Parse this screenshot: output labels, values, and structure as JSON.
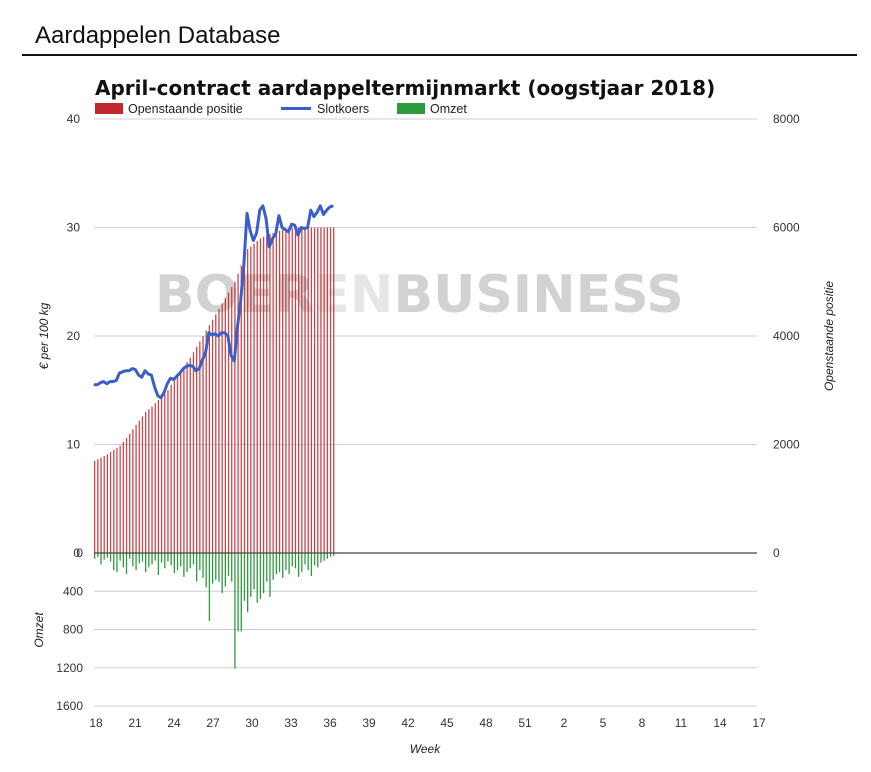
{
  "page": {
    "title": "Aardappelen Database"
  },
  "watermark": {
    "part1": "BOER",
    "part2": "EN",
    "part3": "BUSINESS"
  },
  "chart_data": {
    "type": "bar",
    "title": "April-contract aardappeltermijnmarkt (oogstjaar 2018)",
    "legend": [
      {
        "label": "Openstaande positie",
        "color": "#c0282d",
        "kind": "bar"
      },
      {
        "label": "Slotkoers",
        "color": "#3a5fc8",
        "kind": "line"
      },
      {
        "label": "Omzet",
        "color": "#2e9b3e",
        "kind": "bar"
      }
    ],
    "legend_position": "top-left",
    "xlabel": "Week",
    "x_ticks": [
      "18",
      "21",
      "24",
      "27",
      "30",
      "33",
      "36",
      "39",
      "42",
      "45",
      "48",
      "51",
      "2",
      "5",
      "8",
      "11",
      "14",
      "17"
    ],
    "price_axis": {
      "label": "€ per 100 kg",
      "min": 0,
      "max": 40,
      "ticks": [
        "0",
        "10",
        "20",
        "30",
        "40"
      ]
    },
    "oi_axis": {
      "label": "Openstaande positie",
      "min": 0,
      "max": 8000,
      "ticks": [
        "0",
        "2000",
        "4000",
        "6000",
        "8000"
      ]
    },
    "volume_axis": {
      "label": "Omzet",
      "min": 0,
      "max": 1600,
      "ticks": [
        "0",
        "400",
        "800",
        "1200",
        "1600"
      ],
      "inverted": true
    },
    "grid": true,
    "x_range_weeks": [
      18,
      70
    ],
    "series": [
      {
        "name": "Openstaande positie",
        "type": "bar",
        "axis": "oi",
        "x": [
          18,
          18.25,
          18.5,
          18.75,
          19,
          19.25,
          19.5,
          19.75,
          20,
          20.25,
          20.5,
          20.75,
          21,
          21.25,
          21.5,
          21.75,
          22,
          22.25,
          22.5,
          22.75,
          23,
          23.25,
          23.5,
          23.75,
          24,
          24.25,
          24.5,
          24.75,
          25,
          25.25,
          25.5,
          25.75,
          26,
          26.25,
          26.5,
          26.75,
          27,
          27.25,
          27.5,
          27.75,
          28,
          28.25,
          28.5,
          28.75,
          29,
          29.25,
          29.5,
          29.75,
          30,
          30.25,
          30.5,
          30.75,
          31,
          31.25,
          31.5,
          31.75,
          32,
          32.25,
          32.5,
          32.75,
          33,
          33.25,
          33.5,
          33.75,
          34,
          34.25,
          34.5,
          34.75,
          35,
          35.25,
          35.5,
          35.75,
          36,
          36.25,
          36.5,
          36.75
        ],
        "values": [
          1700,
          1730,
          1760,
          1790,
          1820,
          1860,
          1900,
          1940,
          1980,
          2050,
          2120,
          2200,
          2280,
          2360,
          2440,
          2520,
          2600,
          2650,
          2700,
          2760,
          2820,
          2880,
          2940,
          3000,
          3100,
          3200,
          3280,
          3360,
          3440,
          3520,
          3600,
          3700,
          3800,
          3900,
          4000,
          4100,
          4200,
          4300,
          4400,
          4500,
          4600,
          4700,
          4800,
          4900,
          5000,
          5150,
          5300,
          5450,
          5600,
          5650,
          5700,
          5750,
          5800,
          5830,
          5860,
          5880,
          5900,
          5920,
          5940,
          5960,
          5970,
          5980,
          5990,
          6000,
          6000,
          6000,
          6000,
          6000,
          6000,
          6000,
          6000,
          6000,
          6000,
          6000,
          6000,
          6000
        ]
      },
      {
        "name": "Slotkoers",
        "type": "line",
        "axis": "price",
        "x": [
          18,
          18.25,
          18.5,
          18.75,
          19,
          19.25,
          19.5,
          19.75,
          20,
          20.25,
          20.5,
          20.75,
          21,
          21.25,
          21.5,
          21.75,
          22,
          22.25,
          22.5,
          22.75,
          23,
          23.25,
          23.5,
          23.75,
          24,
          24.25,
          24.5,
          24.75,
          25,
          25.25,
          25.5,
          25.75,
          26,
          26.25,
          26.5,
          26.75,
          27,
          27.25,
          27.5,
          27.75,
          28,
          28.25,
          28.5,
          28.75,
          29,
          29.25,
          29.5,
          29.75,
          30,
          30.25,
          30.5,
          30.75,
          31,
          31.25,
          31.5,
          31.75,
          32,
          32.25,
          32.5,
          32.75,
          33,
          33.25,
          33.5,
          33.75,
          34,
          34.25,
          34.5,
          34.75,
          35,
          35.25,
          35.5,
          35.75,
          36,
          36.25,
          36.5,
          36.75
        ],
        "values": [
          15.5,
          15.5,
          15.7,
          15.8,
          15.6,
          15.8,
          15.8,
          15.9,
          16.6,
          16.7,
          16.8,
          16.8,
          17.0,
          16.9,
          16.4,
          16.2,
          16.8,
          16.5,
          16.4,
          15.3,
          14.5,
          14.3,
          14.8,
          15.6,
          16.1,
          16.0,
          16.3,
          16.6,
          17.0,
          17.2,
          17.3,
          17.2,
          16.8,
          17.0,
          17.8,
          18.5,
          20.3,
          20.1,
          20.2,
          20.0,
          20.3,
          20.3,
          20.0,
          18.2,
          17.7,
          20.8,
          23.2,
          26.5,
          31.3,
          29.7,
          28.8,
          29.5,
          31.6,
          32.0,
          30.8,
          28.2,
          29.0,
          29.4,
          31.1,
          30.0,
          29.8,
          29.6,
          30.3,
          30.2,
          29.3,
          30.0,
          29.9,
          30.0,
          31.6,
          31.0,
          31.4,
          32.0,
          31.2,
          31.6,
          31.9,
          32.0
        ]
      },
      {
        "name": "Omzet",
        "type": "bar",
        "axis": "volume",
        "x": [
          18,
          18.25,
          18.5,
          18.75,
          19,
          19.25,
          19.5,
          19.75,
          20,
          20.25,
          20.5,
          20.75,
          21,
          21.25,
          21.5,
          21.75,
          22,
          22.25,
          22.5,
          22.75,
          23,
          23.25,
          23.5,
          23.75,
          24,
          24.25,
          24.5,
          24.75,
          25,
          25.25,
          25.5,
          25.75,
          26,
          26.25,
          26.5,
          26.75,
          27,
          27.25,
          27.5,
          27.75,
          28,
          28.25,
          28.5,
          28.75,
          29,
          29.25,
          29.5,
          29.75,
          30,
          30.25,
          30.5,
          30.75,
          31,
          31.25,
          31.5,
          31.75,
          32,
          32.25,
          32.5,
          32.75,
          33,
          33.25,
          33.5,
          33.75,
          34,
          34.25,
          34.5,
          34.75,
          35,
          35.25,
          35.5,
          35.75,
          36,
          36.25,
          36.5,
          36.75
        ],
        "values": [
          60,
          40,
          120,
          70,
          50,
          90,
          180,
          200,
          80,
          150,
          220,
          60,
          140,
          180,
          110,
          90,
          200,
          150,
          120,
          80,
          230,
          100,
          160,
          90,
          130,
          210,
          180,
          140,
          250,
          200,
          160,
          120,
          300,
          180,
          260,
          360,
          710,
          320,
          280,
          300,
          420,
          350,
          240,
          300,
          1210,
          820,
          820,
          500,
          620,
          460,
          380,
          520,
          480,
          420,
          300,
          460,
          280,
          220,
          200,
          260,
          180,
          220,
          140,
          160,
          250,
          200,
          120,
          180,
          240,
          130,
          150,
          100,
          80,
          60,
          40,
          30
        ]
      }
    ]
  }
}
